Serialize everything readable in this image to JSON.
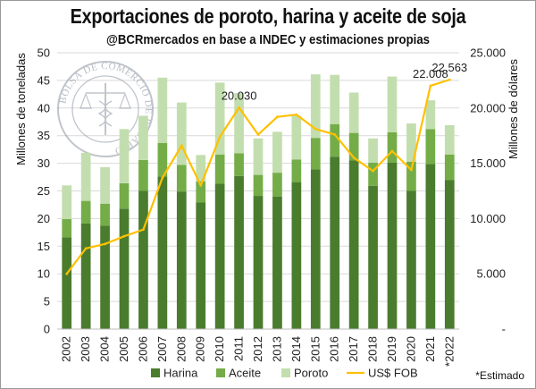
{
  "title": "Exportaciones de poroto, harina y aceite de soja",
  "subtitle": "@BCRmercados en base a INDEC y estimaciones propias",
  "footnote": "*Estimado",
  "seal_text": "BOLSA DE COMERCIO DE ROSARIO",
  "colors": {
    "harina": "#4a7c2e",
    "aceite": "#74ad48",
    "poroto": "#c3deae",
    "fob": "#ffc000",
    "grid": "#d9d9d9"
  },
  "chart_data": {
    "type": "bar",
    "stacked": true,
    "categories": [
      "2002",
      "2003",
      "2004",
      "2005",
      "2006",
      "2007",
      "2008",
      "2009",
      "2010",
      "2011",
      "2012",
      "2013",
      "2014",
      "2015",
      "2016",
      "2017",
      "2018",
      "2019",
      "2020",
      "2021",
      "*2022"
    ],
    "series": [
      {
        "name": "Harina",
        "axis": "left",
        "color_key": "harina",
        "values": [
          16.6,
          19.1,
          18.7,
          21.8,
          25.0,
          27.6,
          24.9,
          22.9,
          26.3,
          27.7,
          24.1,
          24.0,
          26.6,
          28.9,
          31.2,
          30.5,
          25.9,
          30.1,
          25.0,
          29.9,
          27.0
        ]
      },
      {
        "name": "Aceite",
        "axis": "left",
        "color_key": "aceite",
        "values": [
          3.3,
          4.1,
          4.0,
          4.6,
          5.6,
          6.1,
          4.8,
          3.8,
          5.3,
          4.1,
          3.8,
          4.3,
          4.1,
          5.7,
          5.9,
          5.0,
          4.2,
          5.5,
          5.3,
          6.3,
          4.6
        ]
      },
      {
        "name": "Poroto",
        "axis": "left",
        "color_key": "poroto",
        "values": [
          6.1,
          8.7,
          6.6,
          9.8,
          8.0,
          11.8,
          11.3,
          4.8,
          13.0,
          10.9,
          6.6,
          7.4,
          7.9,
          11.5,
          8.9,
          7.3,
          4.4,
          10.1,
          6.9,
          5.2,
          5.3
        ]
      },
      {
        "name": "US$ FOB",
        "type": "line",
        "axis": "right",
        "color_key": "fob",
        "values": [
          5.0,
          7.3,
          7.7,
          8.4,
          9.0,
          13.7,
          16.6,
          13.0,
          17.4,
          20.03,
          17.6,
          19.2,
          19.4,
          18.1,
          17.6,
          15.5,
          14.3,
          16.1,
          14.4,
          22.008,
          22.563
        ]
      }
    ],
    "annotations": [
      {
        "category": "2011",
        "text": "20.030"
      },
      {
        "category": "2021",
        "text": "22.008"
      },
      {
        "category": "*2022",
        "text": "22.563"
      }
    ],
    "ylabel": "Millones de toneladas",
    "ylim": [
      0,
      50
    ],
    "yticks": [
      "0",
      "5",
      "10",
      "15",
      "20",
      "25",
      "30",
      "35",
      "40",
      "45",
      "50"
    ],
    "y2label": "Millones de dólares",
    "y2lim": [
      0,
      25000
    ],
    "y2ticks": [
      "-",
      "5.000",
      "10.000",
      "15.000",
      "20.000",
      "25.000"
    ],
    "grid": true,
    "legend_position": "bottom"
  }
}
